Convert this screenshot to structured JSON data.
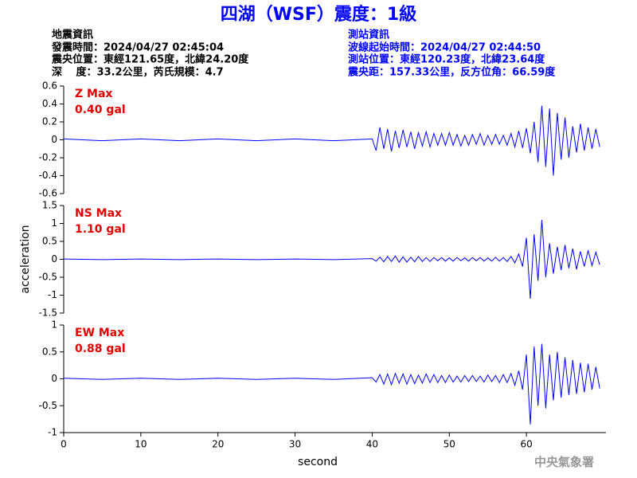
{
  "header": {
    "title": "四湖（WSF）震度：1級",
    "left": [
      "地震資訊",
      "發震時間：2024/04/27 02:45:04",
      "震央位置：東經121.65度，北緯24.20度",
      "深　 度：33.2公里，芮氏規模：4.7"
    ],
    "right": [
      "測站資訊",
      "波線起始時間：2024/04/27 02:44:50",
      "測站位置：東經120.23度，北緯23.64度",
      "震央距：157.33公里，反方位角：66.59度"
    ],
    "watermark": "中央氣象署"
  },
  "chart_data": [
    {
      "type": "line",
      "annotations": [
        "Z Max",
        "0.40 gal"
      ],
      "xlim": [
        0,
        70
      ],
      "ylim": [
        -0.6,
        0.6
      ],
      "yticks": [
        -0.6,
        -0.4,
        -0.2,
        0,
        0.2,
        0.4,
        0.6
      ],
      "x": [
        0,
        5,
        10,
        15,
        20,
        25,
        30,
        35,
        40,
        40.5,
        41,
        41.5,
        42,
        42.5,
        43,
        43.5,
        44,
        44.5,
        45,
        45.5,
        46,
        46.5,
        47,
        47.5,
        48,
        48.5,
        49,
        49.5,
        50,
        50.5,
        51,
        51.5,
        52,
        52.5,
        53,
        53.5,
        54,
        54.5,
        55,
        55.5,
        56,
        56.5,
        57,
        57.5,
        58,
        58.5,
        59,
        59.5,
        60,
        60.5,
        61,
        61.5,
        62,
        62.5,
        63,
        63.5,
        64,
        64.5,
        65,
        65.5,
        66,
        66.5,
        67,
        67.5,
        68,
        68.5,
        69,
        69.5
      ],
      "series": [
        {
          "color": "#0000ff",
          "values": [
            0.01,
            -0.01,
            0.01,
            -0.01,
            0.01,
            -0.01,
            0.01,
            -0.01,
            0.01,
            -0.12,
            0.14,
            -0.1,
            0.12,
            -0.13,
            0.1,
            -0.09,
            0.11,
            -0.08,
            0.09,
            -0.1,
            0.08,
            -0.07,
            0.09,
            -0.08,
            0.07,
            -0.06,
            0.07,
            -0.06,
            0.08,
            -0.06,
            0.06,
            -0.07,
            0.05,
            -0.06,
            0.06,
            -0.05,
            0.07,
            -0.06,
            0.05,
            -0.05,
            0.06,
            -0.05,
            0.05,
            -0.06,
            0.07,
            -0.08,
            0.1,
            -0.09,
            0.13,
            -0.15,
            0.2,
            -0.25,
            0.38,
            -0.3,
            0.35,
            -0.4,
            0.3,
            -0.22,
            0.25,
            -0.2,
            0.15,
            -0.14,
            0.18,
            -0.12,
            0.14,
            -0.1,
            0.12,
            -0.08
          ]
        }
      ]
    },
    {
      "type": "line",
      "annotations": [
        "NS Max",
        "1.10 gal"
      ],
      "ylabel": "acceleration",
      "xlim": [
        0,
        70
      ],
      "ylim": [
        -1.5,
        1.5
      ],
      "yticks": [
        -1.5,
        -1,
        -0.5,
        0,
        0.5,
        1,
        1.5
      ],
      "x": [
        0,
        5,
        10,
        15,
        20,
        25,
        30,
        35,
        40,
        40.5,
        41,
        41.5,
        42,
        42.5,
        43,
        43.5,
        44,
        44.5,
        45,
        45.5,
        46,
        46.5,
        47,
        47.5,
        48,
        48.5,
        49,
        49.5,
        50,
        50.5,
        51,
        51.5,
        52,
        52.5,
        53,
        53.5,
        54,
        54.5,
        55,
        55.5,
        56,
        56.5,
        57,
        57.5,
        58,
        58.5,
        59,
        59.5,
        60,
        60.5,
        61,
        61.5,
        62,
        62.5,
        63,
        63.5,
        64,
        64.5,
        65,
        65.5,
        66,
        66.5,
        67,
        67.5,
        68,
        68.5,
        69,
        69.5
      ],
      "series": [
        {
          "color": "#0000ff",
          "values": [
            0.01,
            -0.01,
            0.01,
            -0.01,
            0.01,
            -0.01,
            0.01,
            -0.01,
            0.02,
            -0.05,
            0.06,
            -0.07,
            0.08,
            -0.06,
            0.09,
            -0.08,
            0.07,
            -0.08,
            0.06,
            -0.07,
            0.08,
            -0.06,
            0.05,
            -0.06,
            0.05,
            -0.04,
            0.05,
            -0.05,
            0.04,
            -0.05,
            0.05,
            -0.04,
            0.04,
            -0.05,
            0.05,
            -0.04,
            0.05,
            -0.05,
            0.04,
            -0.05,
            0.06,
            -0.05,
            0.05,
            -0.06,
            0.08,
            -0.1,
            0.15,
            -0.2,
            0.6,
            -1.1,
            0.7,
            -0.6,
            1.1,
            -0.5,
            0.45,
            -0.4,
            0.35,
            -0.3,
            0.4,
            -0.25,
            0.3,
            -0.28,
            0.22,
            -0.2,
            0.25,
            -0.18,
            0.2,
            -0.15
          ]
        }
      ]
    },
    {
      "type": "line",
      "annotations": [
        "EW Max",
        "0.88 gal"
      ],
      "xlabel": "second",
      "xlim": [
        0,
        70
      ],
      "xticks": [
        0,
        10,
        20,
        30,
        40,
        50,
        60
      ],
      "ylim": [
        -1,
        1
      ],
      "yticks": [
        -1,
        -0.5,
        0,
        0.5,
        1
      ],
      "x": [
        0,
        5,
        10,
        15,
        20,
        25,
        30,
        35,
        40,
        40.5,
        41,
        41.5,
        42,
        42.5,
        43,
        43.5,
        44,
        44.5,
        45,
        45.5,
        46,
        46.5,
        47,
        47.5,
        48,
        48.5,
        49,
        49.5,
        50,
        50.5,
        51,
        51.5,
        52,
        52.5,
        53,
        53.5,
        54,
        54.5,
        55,
        55.5,
        56,
        56.5,
        57,
        57.5,
        58,
        58.5,
        59,
        59.5,
        60,
        60.5,
        61,
        61.5,
        62,
        62.5,
        63,
        63.5,
        64,
        64.5,
        65,
        65.5,
        66,
        66.5,
        67,
        67.5,
        68,
        68.5,
        69,
        69.5
      ],
      "series": [
        {
          "color": "#0000ff",
          "values": [
            0.01,
            -0.01,
            0.01,
            -0.01,
            0.01,
            -0.01,
            0.01,
            -0.01,
            0.02,
            -0.06,
            0.08,
            -0.1,
            0.09,
            -0.11,
            0.1,
            -0.08,
            0.09,
            -0.1,
            0.08,
            -0.09,
            0.07,
            -0.08,
            0.09,
            -0.07,
            0.08,
            -0.07,
            0.06,
            -0.07,
            0.07,
            -0.06,
            0.05,
            -0.06,
            0.06,
            -0.05,
            0.06,
            -0.05,
            0.05,
            -0.06,
            0.07,
            -0.05,
            0.06,
            -0.07,
            0.08,
            -0.07,
            0.1,
            -0.12,
            0.15,
            -0.2,
            0.45,
            -0.85,
            0.6,
            -0.5,
            0.65,
            -0.55,
            0.45,
            -0.4,
            0.5,
            -0.35,
            0.4,
            -0.3,
            0.35,
            -0.28,
            0.3,
            -0.25,
            0.28,
            -0.2,
            0.22,
            -0.18
          ]
        }
      ]
    }
  ]
}
